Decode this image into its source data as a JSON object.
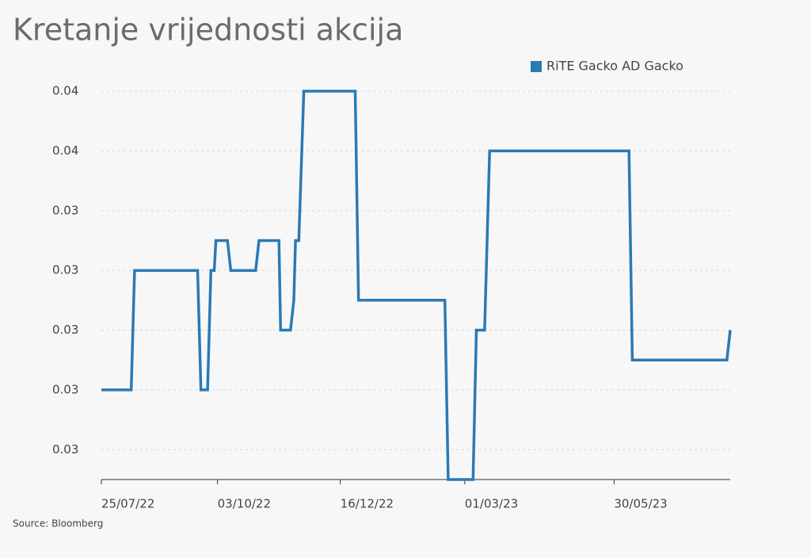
{
  "chart_data": {
    "type": "line",
    "title": "Kretanje vrijednosti akcija",
    "source": "Source: Bloomberg",
    "legend": "top-right",
    "grid": true,
    "x": [
      "2022-07-25",
      "2022-08-12",
      "2022-08-14",
      "2022-09-21",
      "2022-09-23",
      "2022-09-27",
      "2022-09-29",
      "2022-10-01",
      "2022-10-02",
      "2022-10-09",
      "2022-10-11",
      "2022-10-26",
      "2022-10-28",
      "2022-11-09",
      "2022-11-10",
      "2022-11-16",
      "2022-11-18",
      "2022-11-19",
      "2022-11-21",
      "2022-11-24",
      "2022-12-25",
      "2022-12-27",
      "2023-02-17",
      "2023-02-19",
      "2023-03-06",
      "2023-03-08",
      "2023-03-13",
      "2023-03-16",
      "2023-06-08",
      "2023-06-10",
      "2023-08-06",
      "2023-08-08"
    ],
    "series": [
      {
        "name": "RiTE Gacko AD Gacko",
        "color": "#2a7ab5",
        "values": [
          0.028,
          0.028,
          0.032,
          0.032,
          0.028,
          0.028,
          0.032,
          0.032,
          0.033,
          0.033,
          0.032,
          0.032,
          0.033,
          0.033,
          0.03,
          0.03,
          0.031,
          0.033,
          0.033,
          0.038,
          0.038,
          0.031,
          0.031,
          0.025,
          0.025,
          0.03,
          0.03,
          0.036,
          0.036,
          0.029,
          0.029,
          0.03
        ]
      }
    ],
    "xlim": [
      "2022-07-25",
      "2023-08-08"
    ],
    "xticks": [
      {
        "value": "2022-07-25",
        "label": "25/07/22"
      },
      {
        "value": "2022-10-03",
        "label": "03/10/22"
      },
      {
        "value": "2022-12-16",
        "label": "16/12/22"
      },
      {
        "value": "2023-03-01",
        "label": "01/03/23"
      },
      {
        "value": "2023-05-30",
        "label": "30/05/23"
      }
    ],
    "ylim": [
      0.025,
      0.038
    ],
    "yticks": [
      {
        "value": 0.026,
        "label": "0.03"
      },
      {
        "value": 0.028,
        "label": "0.03"
      },
      {
        "value": 0.03,
        "label": "0.03"
      },
      {
        "value": 0.032,
        "label": "0.03"
      },
      {
        "value": 0.034,
        "label": "0.03"
      },
      {
        "value": 0.036,
        "label": "0.04"
      },
      {
        "value": 0.038,
        "label": "0.04"
      }
    ]
  }
}
